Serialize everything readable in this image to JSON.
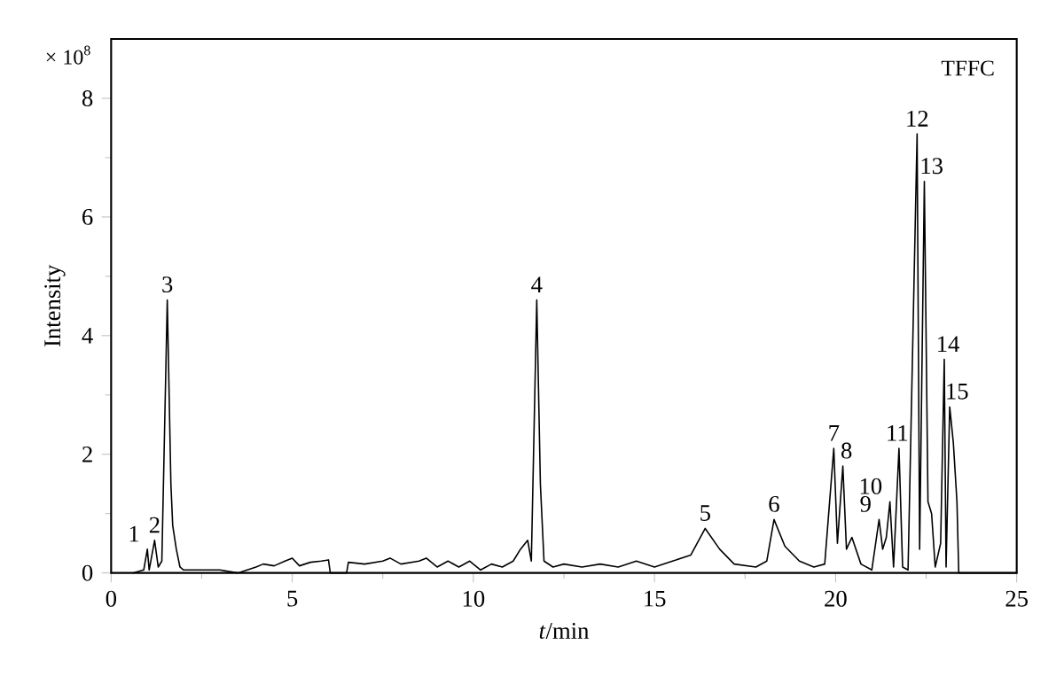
{
  "chart_data": {
    "type": "line",
    "title": "TFFC",
    "xlabel": "*t*/min",
    "ylabel": "Intensity",
    "xlim": [
      0,
      25
    ],
    "ylim": [
      0,
      9
    ],
    "xticks": [
      0,
      5,
      10,
      15,
      20,
      25
    ],
    "yticks": [
      0,
      2,
      4,
      6,
      8
    ],
    "x": [
      0.6,
      0.9,
      1.0,
      1.05,
      1.2,
      1.3,
      1.4,
      1.55,
      1.65,
      1.7,
      1.8,
      1.9,
      2.0,
      3.0,
      3.5,
      4.0,
      4.2,
      4.5,
      4.8,
      5.0,
      5.2,
      5.5,
      5.8,
      6.0,
      6.05,
      6.5,
      6.55,
      7.0,
      7.5,
      7.7,
      8.0,
      8.5,
      8.7,
      9.0,
      9.3,
      9.6,
      9.9,
      10.2,
      10.5,
      10.8,
      11.1,
      11.3,
      11.5,
      11.6,
      11.75,
      11.85,
      11.95,
      12.2,
      12.5,
      13.0,
      13.5,
      14.0,
      14.5,
      15.0,
      15.5,
      16.0,
      16.4,
      16.8,
      17.2,
      17.8,
      18.1,
      18.3,
      18.6,
      19.0,
      19.4,
      19.7,
      19.95,
      20.05,
      20.2,
      20.3,
      20.45,
      20.7,
      21.0,
      21.2,
      21.3,
      21.4,
      21.5,
      21.6,
      21.75,
      21.85,
      22.0,
      22.25,
      22.32,
      22.45,
      22.55,
      22.65,
      22.75,
      22.9,
      23.0,
      23.05,
      23.15,
      23.25,
      23.35,
      23.4,
      25.0
    ],
    "series": [
      {
        "color": "#000000",
        "values": [
          0,
          0.05,
          0.4,
          0.05,
          0.55,
          0.1,
          0.2,
          4.6,
          1.5,
          0.8,
          0.4,
          0.1,
          0.05,
          0.05,
          0,
          0.1,
          0.15,
          0.12,
          0.2,
          0.25,
          0.12,
          0.18,
          0.2,
          0.22,
          0,
          0,
          0.18,
          0.15,
          0.2,
          0.25,
          0.15,
          0.2,
          0.25,
          0.1,
          0.2,
          0.1,
          0.2,
          0.05,
          0.15,
          0.1,
          0.2,
          0.4,
          0.55,
          0.2,
          4.6,
          1.5,
          0.2,
          0.1,
          0.15,
          0.1,
          0.15,
          0.1,
          0.2,
          0.1,
          0.2,
          0.3,
          0.75,
          0.4,
          0.15,
          0.1,
          0.2,
          0.9,
          0.45,
          0.2,
          0.1,
          0.15,
          2.1,
          0.5,
          1.8,
          0.4,
          0.6,
          0.15,
          0.05,
          0.9,
          0.4,
          0.6,
          1.2,
          0.1,
          2.1,
          0.1,
          0.05,
          7.4,
          0.4,
          6.6,
          1.2,
          1.0,
          0.1,
          0.5,
          3.6,
          0.1,
          2.8,
          2.2,
          1.2,
          0,
          0
        ]
      }
    ],
    "annotations": [
      "× 10$^{8}$",
      {
        "text": "1",
        "x": 1.0,
        "y": 0.4
      },
      {
        "text": "2",
        "x": 1.2,
        "y": 0.55
      },
      {
        "text": "3",
        "x": 1.55,
        "y": 4.6
      },
      {
        "text": "4",
        "x": 11.75,
        "y": 4.6
      },
      {
        "text": "5",
        "x": 16.4,
        "y": 0.75
      },
      {
        "text": "6",
        "x": 18.3,
        "y": 0.9
      },
      {
        "text": "7",
        "x": 19.95,
        "y": 2.1
      },
      {
        "text": "8",
        "x": 20.3,
        "y": 1.8
      },
      {
        "text": "9",
        "x": 21.2,
        "y": 0.9
      },
      {
        "text": "10",
        "x": 21.5,
        "y": 1.2
      },
      {
        "text": "11",
        "x": 21.7,
        "y": 2.1
      },
      {
        "text": "12",
        "x": 22.25,
        "y": 7.4
      },
      {
        "text": "13",
        "x": 22.65,
        "y": 6.6
      },
      {
        "text": "14",
        "x": 23.1,
        "y": 3.6
      },
      {
        "text": "15",
        "x": 23.35,
        "y": 2.8
      }
    ]
  }
}
